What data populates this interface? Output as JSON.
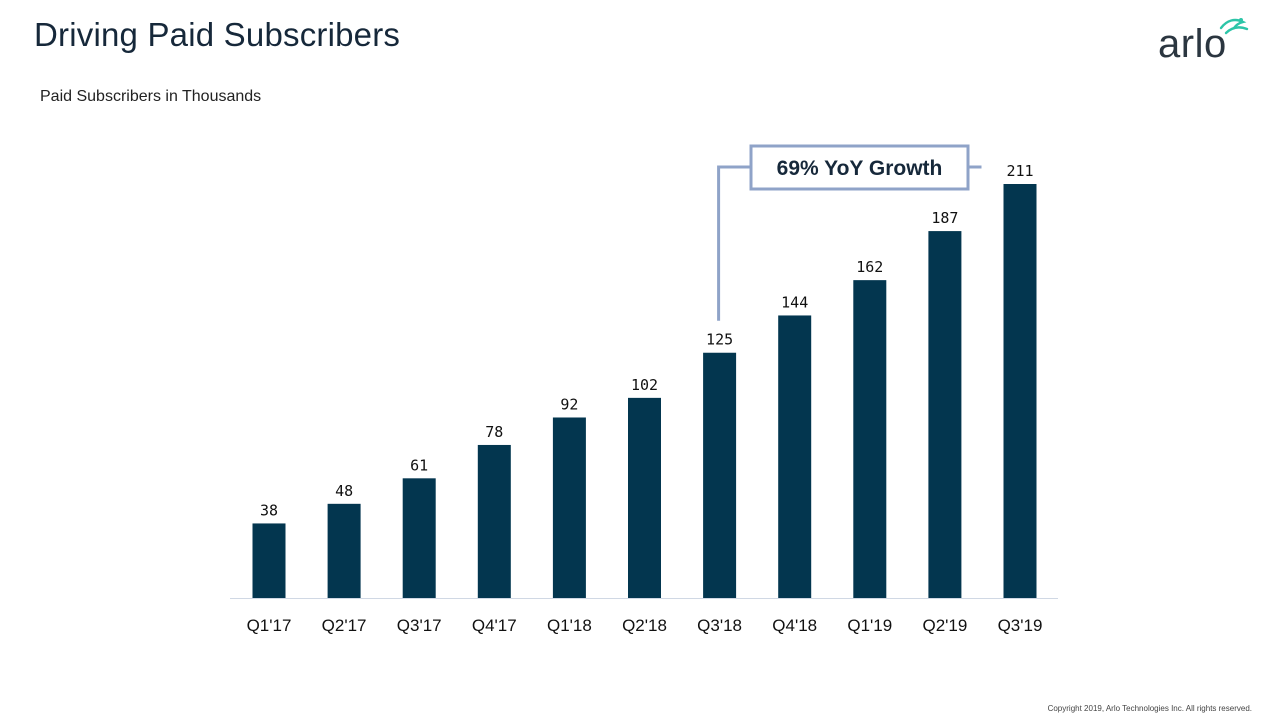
{
  "page": {
    "title": "Driving Paid Subscribers",
    "subtitle": "Paid Subscribers in Thousands",
    "logo_text": "arlo",
    "copyright": "Copyright 2019, Arlo Technologies  Inc. All rights reserved."
  },
  "chart_data": {
    "type": "bar",
    "title": "",
    "xlabel": "",
    "ylabel": "Paid Subscribers in Thousands",
    "categories": [
      "Q1'17",
      "Q2'17",
      "Q3'17",
      "Q4'17",
      "Q1'18",
      "Q2'18",
      "Q3'18",
      "Q4'18",
      "Q1'19",
      "Q2'19",
      "Q3'19"
    ],
    "series": [
      {
        "values": [
          38,
          48,
          61,
          78,
          92,
          102,
          125,
          144,
          162,
          187,
          211
        ]
      }
    ],
    "ylim": [
      0,
      211
    ],
    "grid": false,
    "legend": "none",
    "annotations": [
      {
        "text": "69% YoY Growth",
        "from_category": "Q3'18",
        "to_category": "Q3'19"
      }
    ],
    "colors": {
      "bar": "#03364f",
      "annotation_line": "#8fa3c8",
      "baseline": "#d0d8e4"
    }
  }
}
